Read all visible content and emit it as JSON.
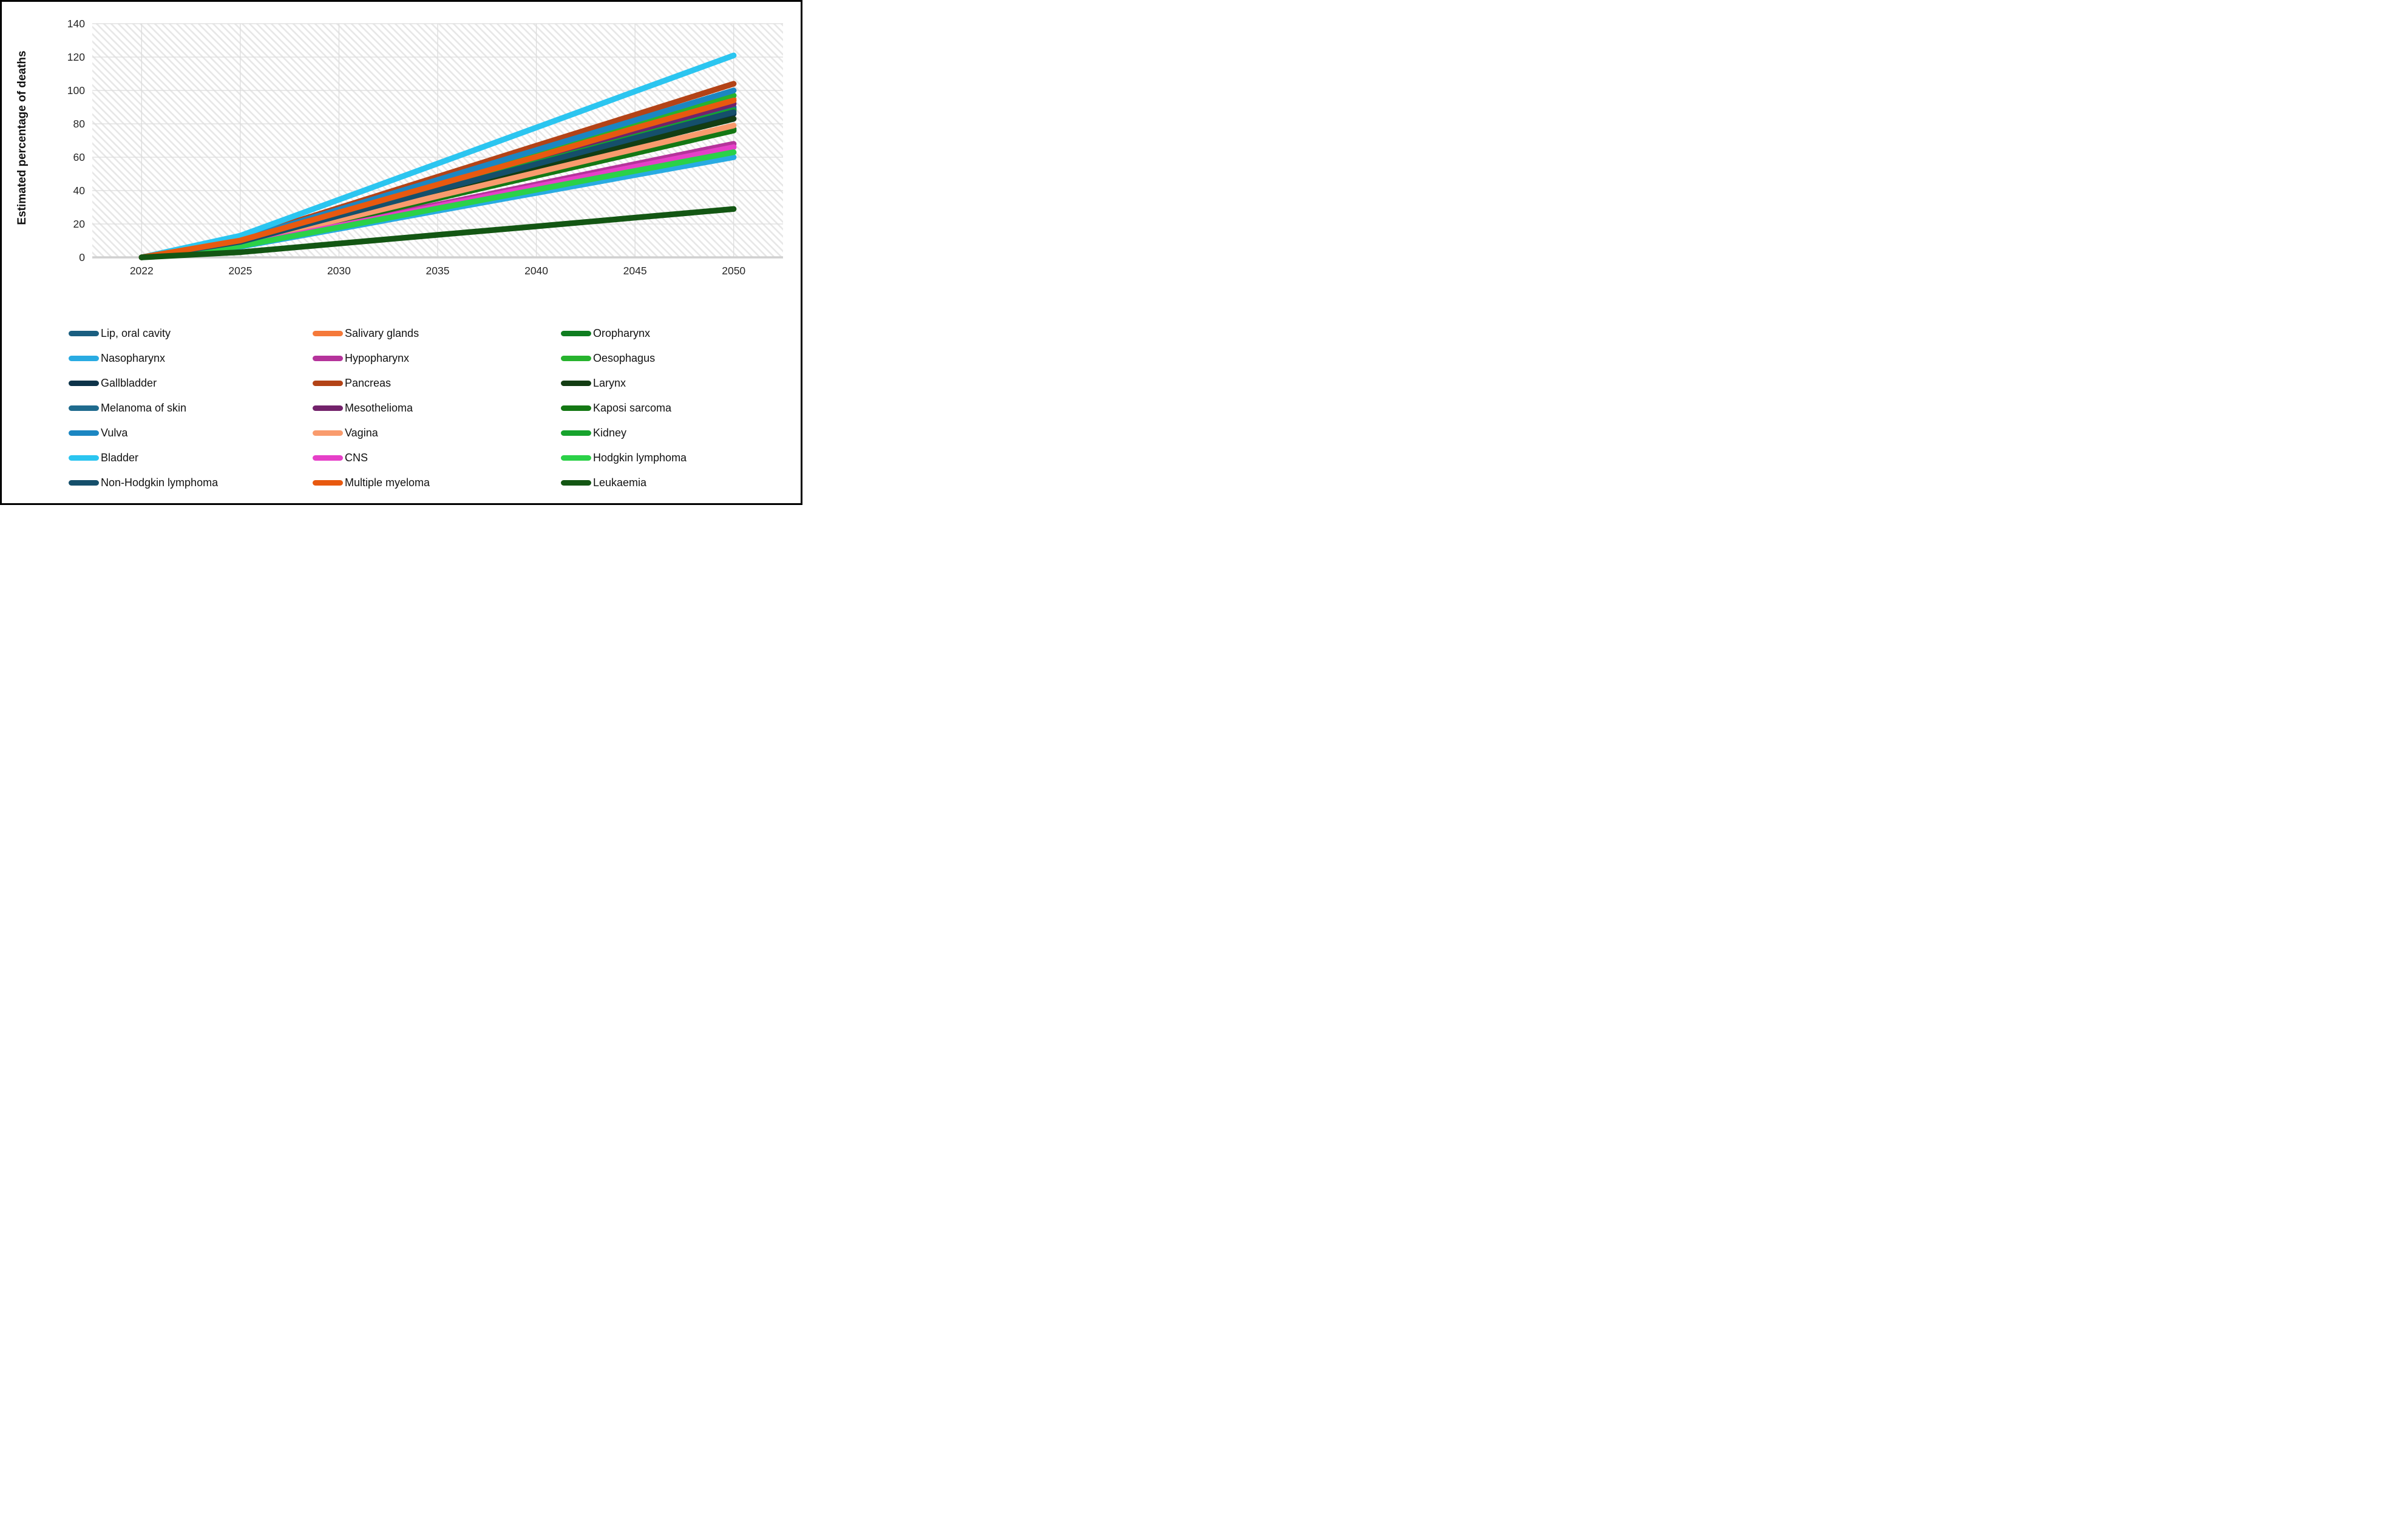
{
  "chart_data": {
    "type": "line",
    "title": "",
    "xlabel": "",
    "ylabel": "Estimated percentage of deaths",
    "categories": [
      "2022",
      "2025",
      "2030",
      "2035",
      "2040",
      "2045",
      "2050"
    ],
    "ylim": [
      0,
      140
    ],
    "yticks": [
      0,
      20,
      40,
      60,
      80,
      100,
      120,
      140
    ],
    "grid": true,
    "plot_background": "diagonal-hatch",
    "legend_position": "bottom",
    "legend_columns": 3,
    "series": [
      {
        "name": "Lip, oral cavity",
        "color": "#1A5E80",
        "values": [
          0,
          9.5,
          25.4,
          41.3,
          57.2,
          73.1,
          89
        ]
      },
      {
        "name": "Salivary glands",
        "color": "#F5793A",
        "values": [
          0,
          10.2,
          27.1,
          44.1,
          61.1,
          78.0,
          95
        ]
      },
      {
        "name": "Oropharynx",
        "color": "#0F7D20",
        "values": [
          0,
          8.3,
          22.0,
          35.8,
          49.5,
          63.3,
          77
        ]
      },
      {
        "name": "Nasopharynx",
        "color": "#29ABE2",
        "values": [
          0,
          6.4,
          17.1,
          27.9,
          38.6,
          49.3,
          60
        ]
      },
      {
        "name": "Hypopharynx",
        "color": "#B5339B",
        "values": [
          0,
          7.3,
          19.4,
          31.6,
          43.7,
          55.9,
          68
        ]
      },
      {
        "name": "Oesophagus",
        "color": "#27B32E",
        "values": [
          0,
          10.4,
          27.7,
          45.0,
          62.4,
          79.7,
          97
        ]
      },
      {
        "name": "Gallbladder",
        "color": "#0D3349",
        "values": [
          0,
          9.2,
          24.6,
          39.9,
          55.3,
          70.6,
          86
        ]
      },
      {
        "name": "Pancreas",
        "color": "#B34317",
        "values": [
          0,
          11.1,
          29.7,
          48.3,
          66.9,
          85.4,
          104
        ]
      },
      {
        "name": "Larynx",
        "color": "#133D13",
        "values": [
          0,
          8.9,
          23.7,
          38.5,
          53.4,
          68.2,
          83
        ]
      },
      {
        "name": "Melanoma of skin",
        "color": "#1F6B8E",
        "values": [
          0,
          9.6,
          25.7,
          41.8,
          57.9,
          73.9,
          90
        ]
      },
      {
        "name": "Mesothelioma",
        "color": "#73226B",
        "values": [
          0,
          9.9,
          26.3,
          42.7,
          59.1,
          75.6,
          92
        ]
      },
      {
        "name": "Kaposi sarcoma",
        "color": "#147814",
        "values": [
          0,
          8.1,
          21.7,
          35.3,
          48.9,
          62.4,
          76
        ]
      },
      {
        "name": "Vulva",
        "color": "#1B86C2",
        "values": [
          0,
          10.7,
          28.6,
          46.4,
          64.3,
          82.1,
          100
        ]
      },
      {
        "name": "Vagina",
        "color": "#F99B6D",
        "values": [
          0,
          8.5,
          22.6,
          36.7,
          50.8,
          64.9,
          79
        ]
      },
      {
        "name": "Kidney",
        "color": "#17A32D",
        "values": [
          0,
          9.4,
          25.1,
          40.9,
          56.6,
          72.3,
          88
        ]
      },
      {
        "name": "Bladder",
        "color": "#2BC5F0",
        "values": [
          0,
          13.0,
          34.6,
          56.2,
          77.8,
          99.4,
          121
        ]
      },
      {
        "name": "CNS",
        "color": "#E640C8",
        "values": [
          0,
          7.1,
          18.9,
          30.6,
          42.4,
          54.2,
          66
        ]
      },
      {
        "name": "Hodgkin lymphoma",
        "color": "#2BD148",
        "values": [
          0,
          6.8,
          18.0,
          29.3,
          40.5,
          51.8,
          63
        ]
      },
      {
        "name": "Non-Hodgkin lymphoma",
        "color": "#154F6B",
        "values": [
          0,
          9.3,
          24.9,
          40.4,
          55.9,
          71.5,
          87
        ]
      },
      {
        "name": "Multiple myeloma",
        "color": "#E8590F",
        "values": [
          0,
          10.1,
          26.9,
          43.6,
          60.2,
          77.4,
          94
        ]
      },
      {
        "name": "Leukaemia",
        "color": "#135613",
        "values": [
          0,
          3.1,
          8.3,
          13.5,
          18.6,
          23.8,
          29
        ]
      }
    ]
  },
  "colors": {
    "gridline": "#dcdcdc",
    "axis_line": "#d0d0d0",
    "hatch_stripe": "#e7e7e7",
    "tick_text": "#262626",
    "frame_border": "#000000"
  }
}
